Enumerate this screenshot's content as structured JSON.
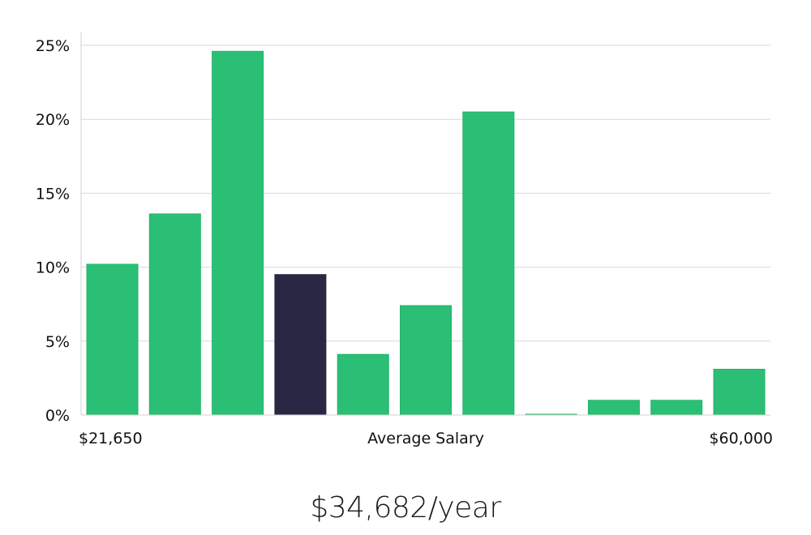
{
  "chart_data": {
    "type": "bar",
    "title": "",
    "xlabel": "Average Salary",
    "ylabel": "",
    "ylim": [
      0,
      25
    ],
    "y_ticks": [
      0,
      5,
      10,
      15,
      20,
      25
    ],
    "y_tick_labels": [
      "0%",
      "5%",
      "10%",
      "15%",
      "20%",
      "25%"
    ],
    "x_min_label": "$21,650",
    "x_max_label": "$60,000",
    "values": [
      10.2,
      13.6,
      24.6,
      9.5,
      4.1,
      7.4,
      20.5,
      0.05,
      1.0,
      1.0,
      3.1
    ],
    "highlight_index": 3,
    "grid": true
  },
  "colors": {
    "bar": "#2bbf76",
    "bar_edge": "#22b36a",
    "highlight": "#2a2745"
  },
  "summary": {
    "salary_text": "$34,682/year"
  }
}
